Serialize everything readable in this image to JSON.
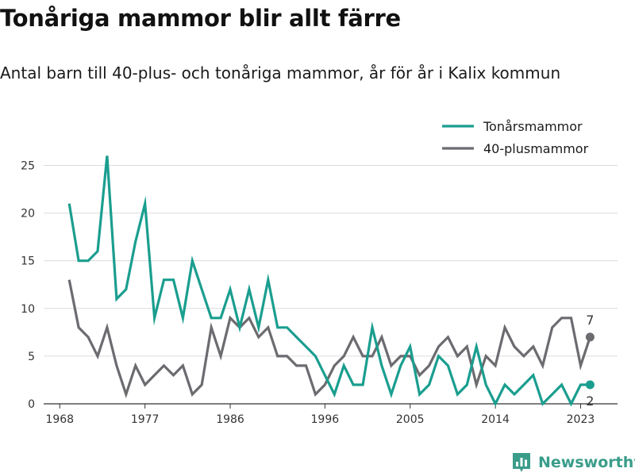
{
  "title": "Tonåriga mammor blir allt färre",
  "subtitle": "Antal barn till 40-plus- och tonåriga mammor, år för år i Kalix kommun",
  "brand": {
    "name": "Newsworthy",
    "icon": "newsworthy-logo-icon",
    "color": "#3a9d8a"
  },
  "colors": {
    "teen": "#1a9e8f",
    "forty": "#6b6b70",
    "grid": "#dcdcdc",
    "axis": "#333333"
  },
  "chart_data": {
    "type": "line",
    "xlim": [
      1966,
      2027
    ],
    "ylim": [
      0,
      28
    ],
    "xticks": [
      1968,
      1977,
      1986,
      1996,
      2005,
      2014,
      2023
    ],
    "yticks": [
      0,
      5,
      10,
      15,
      20,
      25
    ],
    "grid": true,
    "legend_position": "top-right",
    "x": [
      1969,
      1970,
      1971,
      1972,
      1973,
      1974,
      1975,
      1976,
      1977,
      1978,
      1979,
      1980,
      1981,
      1982,
      1983,
      1984,
      1985,
      1986,
      1987,
      1988,
      1989,
      1990,
      1991,
      1992,
      1993,
      1994,
      1995,
      1996,
      1997,
      1998,
      1999,
      2000,
      2001,
      2002,
      2003,
      2004,
      2005,
      2006,
      2007,
      2008,
      2009,
      2010,
      2011,
      2012,
      2013,
      2014,
      2015,
      2016,
      2017,
      2018,
      2019,
      2020,
      2021,
      2022,
      2023,
      2024
    ],
    "series": [
      {
        "name": "Tonårsmammor",
        "color": "#1a9e8f",
        "values": [
          21,
          15,
          15,
          16,
          26,
          11,
          12,
          17,
          21,
          9,
          13,
          13,
          9,
          15,
          12,
          9,
          9,
          12,
          8,
          12,
          8,
          13,
          8,
          8,
          7,
          6,
          5,
          3,
          1,
          4,
          2,
          2,
          8,
          4,
          1,
          4,
          6,
          1,
          2,
          5,
          4,
          1,
          2,
          6,
          2,
          0,
          2,
          1,
          2,
          3,
          0,
          1,
          2,
          0,
          2,
          2
        ],
        "end_label": "2"
      },
      {
        "name": "40-plusmammor",
        "color": "#6b6b70",
        "values": [
          13,
          8,
          7,
          5,
          8,
          4,
          1,
          4,
          2,
          3,
          4,
          3,
          4,
          1,
          2,
          8,
          5,
          9,
          8,
          9,
          7,
          8,
          5,
          5,
          4,
          4,
          1,
          2,
          4,
          5,
          7,
          5,
          5,
          7,
          4,
          5,
          5,
          3,
          4,
          6,
          7,
          5,
          6,
          2,
          5,
          4,
          8,
          6,
          5,
          6,
          4,
          8,
          9,
          9,
          4,
          7
        ],
        "end_label": "7"
      }
    ]
  }
}
